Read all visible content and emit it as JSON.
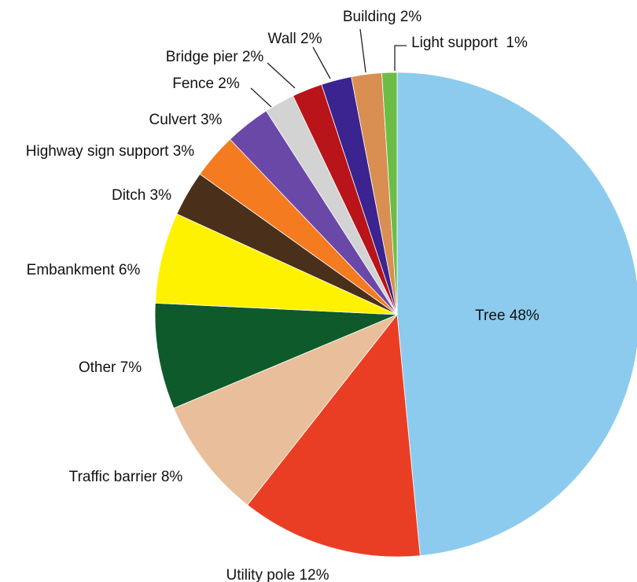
{
  "chart_data": {
    "type": "pie",
    "start": "12 o'clock",
    "direction": "clockwise",
    "slices": [
      {
        "label": "Tree 48%",
        "category": "Tree",
        "value": 48,
        "color": "#8ccbee"
      },
      {
        "label": "Utility pole 12%",
        "category": "Utility pole",
        "value": 12,
        "color": "#ea3e24"
      },
      {
        "label": "Traffic barrier 8%",
        "category": "Traffic barrier",
        "value": 8,
        "color": "#e8bf9a"
      },
      {
        "label": "Other 7%",
        "category": "Other",
        "value": 7,
        "color": "#0e5a2a"
      },
      {
        "label": "Embankment 6%",
        "category": "Embankment",
        "value": 6,
        "color": "#fff200"
      },
      {
        "label": "Ditch 3%",
        "category": "Ditch",
        "value": 3,
        "color": "#4a2f1a"
      },
      {
        "label": "Highway sign support 3%",
        "category": "Highway sign support",
        "value": 3,
        "color": "#f57b20"
      },
      {
        "label": "Culvert 3%",
        "category": "Culvert",
        "value": 3,
        "color": "#6a48a8"
      },
      {
        "label": "Fence 2%",
        "category": "Fence",
        "value": 2,
        "color": "#d3d3d3"
      },
      {
        "label": "Bridge pier 2%",
        "category": "Bridge pier",
        "value": 2,
        "color": "#b8141a"
      },
      {
        "label": "Wall 2%",
        "category": "Wall",
        "value": 2,
        "color": "#3b2390"
      },
      {
        "label": "Building 2%",
        "category": "Building",
        "value": 2,
        "color": "#d98e52"
      },
      {
        "label": "Light support  1%",
        "category": "Light support",
        "value": 1,
        "color": "#6cbd45"
      }
    ]
  }
}
